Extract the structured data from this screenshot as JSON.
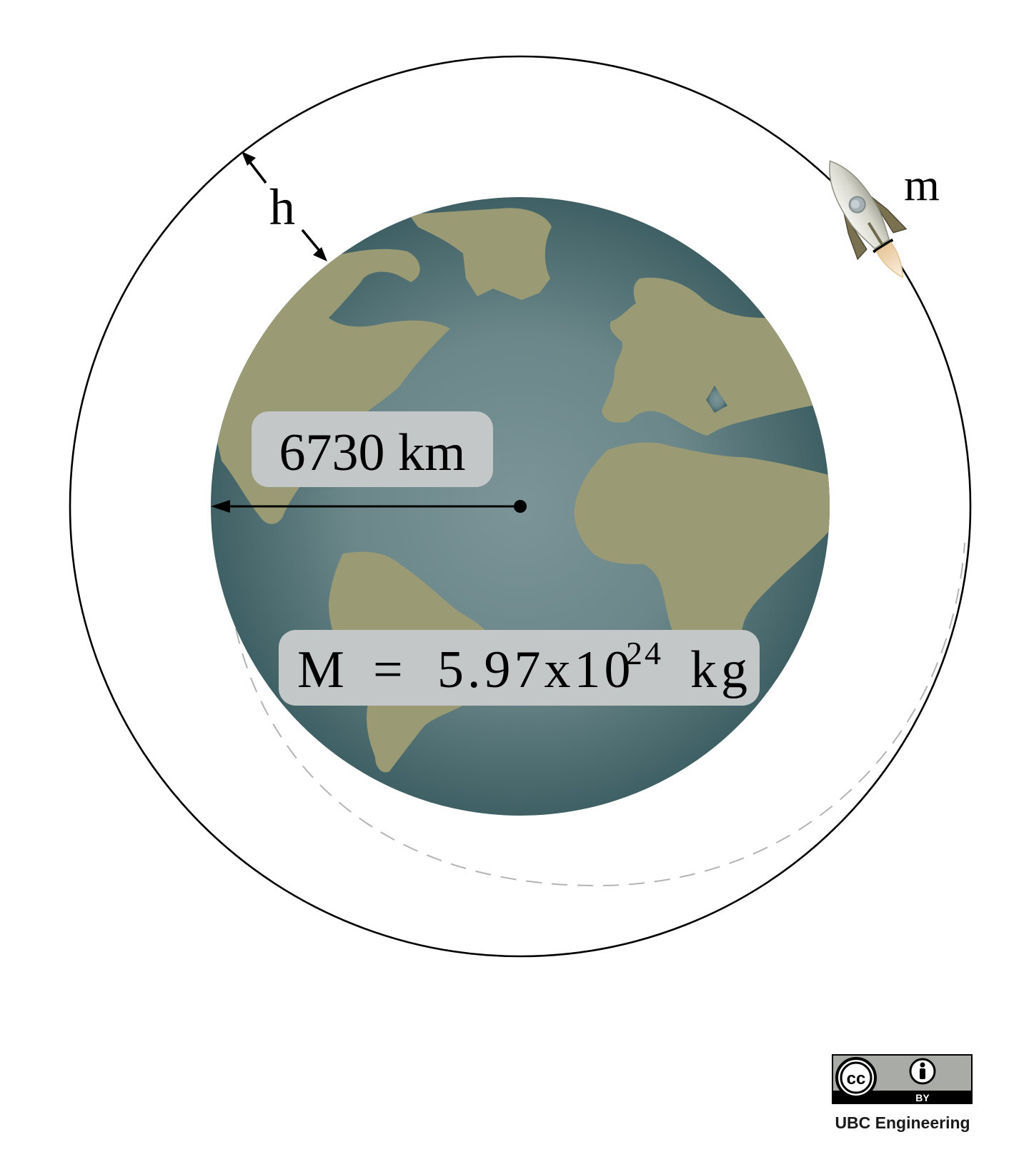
{
  "labels": {
    "height": "h",
    "satellite_mass": "m",
    "radius": "6730 km",
    "earth_mass_symbol": "M",
    "earth_mass_equals": "=",
    "earth_mass_mantissa": "5.97x10",
    "earth_mass_exponent": "24",
    "earth_mass_unit": "kg"
  },
  "license": {
    "cc_text": "cc",
    "by_text": "BY",
    "attribution": "UBC Engineering"
  },
  "colors": {
    "ocean_center": "#7b9497",
    "ocean_edge": "#3f6064",
    "land": "#9a9b74",
    "label_box": "#c3c7c8",
    "orbit": "#000000",
    "dashed_orbit": "#b3b3b3"
  },
  "icons": {
    "spacecraft": "rocket-icon",
    "cc_logo": "cc-logo-icon",
    "attribution_person": "person-icon"
  }
}
